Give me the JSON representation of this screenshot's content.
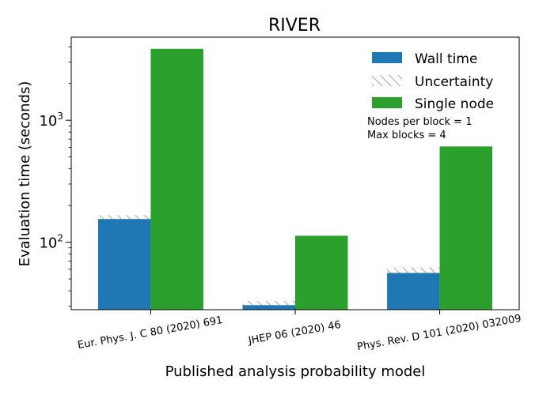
{
  "chart_data": {
    "type": "bar",
    "title": "RIVER",
    "xlabel": "Published analysis probability model",
    "ylabel": "Evaluation time (seconds)",
    "yscale": "log",
    "ylim": [
      28,
      4800
    ],
    "y_major_ticks": [
      {
        "value": 100,
        "base": "10",
        "exp": "2"
      },
      {
        "value": 1000,
        "base": "10",
        "exp": "3"
      }
    ],
    "categories": [
      "Eur. Phys. J. C 80 (2020) 691",
      "JHEP 06 (2020) 46",
      "Phys. Rev. D 101 (2020) 032009"
    ],
    "series": [
      {
        "name": "Wall time",
        "color": "#1f77b4",
        "values": [
          155,
          30.5,
          56
        ],
        "uncertainty_upper": [
          167,
          33,
          62
        ]
      },
      {
        "name": "Single node",
        "color": "#2ca02c",
        "values": [
          3850,
          113,
          610
        ]
      }
    ],
    "legend": {
      "placement": "top-right",
      "entries": [
        "Wall time",
        "Uncertainty",
        "Single node"
      ]
    },
    "annotation": [
      "Nodes per block = 1",
      "Max blocks = 4"
    ],
    "grid": false
  }
}
